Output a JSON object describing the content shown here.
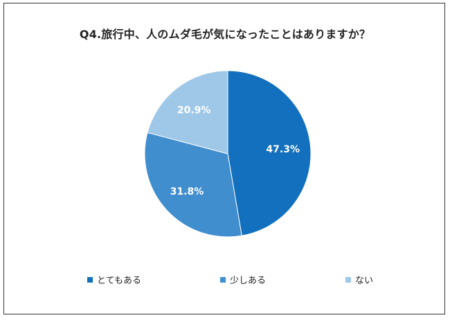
{
  "chart_data": {
    "type": "pie",
    "title": "Q4.旅行中、人のムダ毛が気になったことはありますか？",
    "slices": [
      {
        "name": "とてもある",
        "value": 47.3,
        "label": "47.3%",
        "color": "#1270be"
      },
      {
        "name": "少しある",
        "value": 31.8,
        "label": "31.8%",
        "color": "#418ecf"
      },
      {
        "name": "ない",
        "value": 20.9,
        "label": "20.9%",
        "color": "#9fc8e8"
      }
    ],
    "start_angle_deg": 0,
    "direction": "clockwise",
    "legend_position": "bottom"
  }
}
